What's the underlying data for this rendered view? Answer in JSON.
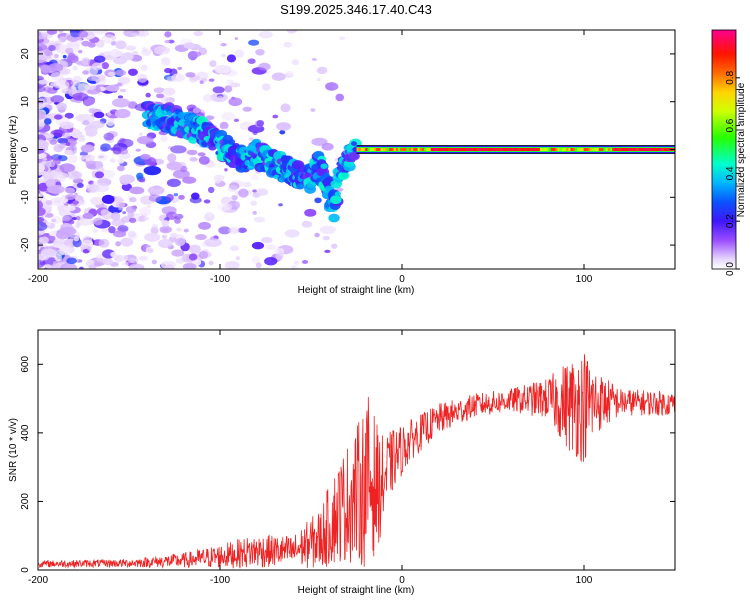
{
  "title": "S199.2025.346.17.40.C43",
  "chart_data": [
    {
      "type": "heatmap",
      "xlabel": "Height of straight line (km)",
      "ylabel": "Frequency (Hz)",
      "xlim": [
        -200,
        150
      ],
      "ylim": [
        -25,
        25
      ],
      "xticks": [
        -200,
        -100,
        0,
        100
      ],
      "yticks": [
        -20,
        -10,
        0,
        10,
        20
      ],
      "colorbar": {
        "label": "Normalized spectral amplitude",
        "ticks": [
          0.0,
          0.2,
          0.4,
          0.6,
          0.8
        ],
        "range": [
          0,
          1
        ]
      },
      "ridge": [
        {
          "x": -200,
          "y": 5
        },
        {
          "x": -180,
          "y": 5
        },
        {
          "x": -160,
          "y": 6
        },
        {
          "x": -140,
          "y": 7
        },
        {
          "x": -130,
          "y": 7
        },
        {
          "x": -120,
          "y": 5
        },
        {
          "x": -110,
          "y": 4
        },
        {
          "x": -100,
          "y": 1
        },
        {
          "x": -90,
          "y": -2
        },
        {
          "x": -80,
          "y": -1
        },
        {
          "x": -70,
          "y": -3
        },
        {
          "x": -60,
          "y": -5
        },
        {
          "x": -50,
          "y": -6
        },
        {
          "x": -45,
          "y": -3
        },
        {
          "x": -38,
          "y": -12
        },
        {
          "x": -35,
          "y": -6
        },
        {
          "x": -30,
          "y": -2
        },
        {
          "x": -25,
          "y": 1
        },
        {
          "x": -20,
          "y": 0.5
        },
        {
          "x": 0,
          "y": 0
        },
        {
          "x": 150,
          "y": 0
        }
      ],
      "band_x": [
        -25,
        150
      ],
      "band_y": 0
    },
    {
      "type": "line",
      "xlabel": "Height of straight line (km)",
      "ylabel": "SNR (10 * v/v)",
      "xlim": [
        -200,
        150
      ],
      "ylim": [
        0,
        700
      ],
      "xticks": [
        -200,
        -100,
        0,
        100
      ],
      "yticks": [
        0,
        200,
        400,
        600
      ],
      "series": [
        {
          "name": "SNR",
          "color": "#ee2222",
          "envelope": [
            {
              "x": -200,
              "mean": 18,
              "amp": 10
            },
            {
              "x": -150,
              "mean": 20,
              "amp": 12
            },
            {
              "x": -120,
              "mean": 28,
              "amp": 22
            },
            {
              "x": -100,
              "mean": 40,
              "amp": 35
            },
            {
              "x": -80,
              "mean": 55,
              "amp": 50
            },
            {
              "x": -60,
              "mean": 55,
              "amp": 45
            },
            {
              "x": -45,
              "mean": 90,
              "amp": 90
            },
            {
              "x": -35,
              "mean": 170,
              "amp": 150
            },
            {
              "x": -25,
              "mean": 220,
              "amp": 200
            },
            {
              "x": -18,
              "mean": 260,
              "amp": 260
            },
            {
              "x": -12,
              "mean": 240,
              "amp": 150
            },
            {
              "x": -5,
              "mean": 320,
              "amp": 90
            },
            {
              "x": 5,
              "mean": 380,
              "amp": 60
            },
            {
              "x": 20,
              "mean": 440,
              "amp": 45
            },
            {
              "x": 40,
              "mean": 480,
              "amp": 35
            },
            {
              "x": 60,
              "mean": 495,
              "amp": 35
            },
            {
              "x": 80,
              "mean": 500,
              "amp": 60
            },
            {
              "x": 92,
              "mean": 480,
              "amp": 140
            },
            {
              "x": 100,
              "mean": 480,
              "amp": 170
            },
            {
              "x": 108,
              "mean": 490,
              "amp": 90
            },
            {
              "x": 120,
              "mean": 490,
              "amp": 40
            },
            {
              "x": 150,
              "mean": 485,
              "amp": 35
            }
          ]
        }
      ]
    }
  ]
}
